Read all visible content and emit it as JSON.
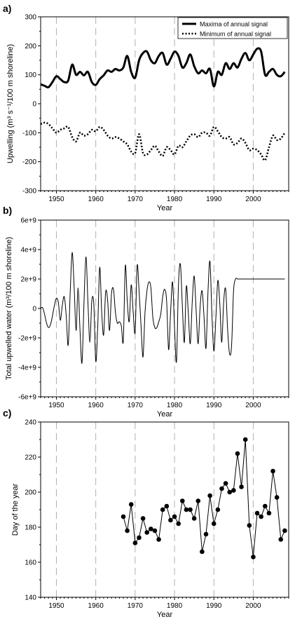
{
  "chart_data": [
    {
      "panel_label": "a)",
      "type": "line",
      "xlabel": "Year",
      "ylabel": "Upwelling (m³ s⁻¹/100 m shoreline)",
      "xlim": [
        1946,
        2009
      ],
      "ylim": [
        -300,
        300
      ],
      "yticks": [
        -300,
        -200,
        -100,
        0,
        100,
        200,
        300
      ],
      "xticks": [
        1950,
        1960,
        1970,
        1980,
        1990,
        2000
      ],
      "vgrid_dashed_at": [
        1950,
        1960,
        1970,
        1980,
        1990,
        2000
      ],
      "legend": {
        "placement": "top-right"
      },
      "series": [
        {
          "name": "Maxima of annual signal",
          "style": "solid-thick",
          "x": [
            1946,
            1947,
            1948,
            1949,
            1950,
            1951,
            1952,
            1953,
            1954,
            1955,
            1956,
            1957,
            1958,
            1959,
            1960,
            1961,
            1962,
            1963,
            1964,
            1965,
            1966,
            1967,
            1968,
            1969,
            1970,
            1971,
            1972,
            1973,
            1974,
            1975,
            1976,
            1977,
            1978,
            1979,
            1980,
            1981,
            1982,
            1983,
            1984,
            1985,
            1986,
            1987,
            1988,
            1989,
            1990,
            1991,
            1992,
            1993,
            1994,
            1995,
            1996,
            1997,
            1998,
            1999,
            2000,
            2001,
            2002,
            2003,
            2004,
            2005,
            2006,
            2007,
            2008
          ],
          "y": [
            67,
            62,
            57,
            75,
            95,
            85,
            75,
            80,
            135,
            100,
            110,
            98,
            110,
            75,
            65,
            85,
            98,
            115,
            110,
            120,
            115,
            125,
            165,
            110,
            90,
            150,
            175,
            180,
            150,
            140,
            165,
            175,
            135,
            155,
            180,
            165,
            125,
            140,
            170,
            130,
            105,
            115,
            105,
            120,
            60,
            110,
            100,
            140,
            120,
            140,
            125,
            155,
            175,
            150,
            170,
            190,
            180,
            100,
            110,
            120,
            100,
            95,
            110
          ]
        },
        {
          "name": "Minimum of annual signal",
          "style": "dotted",
          "x": [
            1946,
            1947,
            1948,
            1949,
            1950,
            1951,
            1952,
            1953,
            1954,
            1955,
            1956,
            1957,
            1958,
            1959,
            1960,
            1961,
            1962,
            1963,
            1964,
            1965,
            1966,
            1967,
            1968,
            1969,
            1970,
            1971,
            1972,
            1973,
            1974,
            1975,
            1976,
            1977,
            1978,
            1979,
            1980,
            1981,
            1982,
            1983,
            1984,
            1985,
            1986,
            1987,
            1988,
            1989,
            1990,
            1991,
            1992,
            1993,
            1994,
            1995,
            1996,
            1997,
            1998,
            1999,
            2000,
            2001,
            2002,
            2003,
            2004,
            2005,
            2006,
            2007,
            2008
          ],
          "y": [
            -70,
            -65,
            -70,
            -85,
            -100,
            -90,
            -85,
            -80,
            -115,
            -130,
            -100,
            -110,
            -105,
            -90,
            -95,
            -80,
            -90,
            -110,
            -120,
            -115,
            -120,
            -130,
            -140,
            -165,
            -170,
            -105,
            -170,
            -175,
            -160,
            -145,
            -165,
            -180,
            -150,
            -160,
            -175,
            -145,
            -150,
            -130,
            -110,
            -105,
            -115,
            -100,
            -100,
            -110,
            -80,
            -95,
            -115,
            -120,
            -115,
            -140,
            -135,
            -120,
            -135,
            -160,
            -155,
            -160,
            -175,
            -195,
            -150,
            -110,
            -125,
            -120,
            -100
          ]
        }
      ]
    },
    {
      "panel_label": "b)",
      "type": "line",
      "xlabel": "Year",
      "ylabel": "Total upwelled water (m³/100 m shoreline)",
      "xlim": [
        1946,
        2009
      ],
      "ylim": [
        -6000000000.0,
        6000000000.0
      ],
      "yticks": [
        -6000000000.0,
        -4000000000.0,
        -2000000000.0,
        0,
        2000000000.0,
        4000000000.0,
        6000000000.0
      ],
      "yticklabels": [
        "-6e+9",
        "-4e+9",
        "-2e+9",
        "0",
        "2e+9",
        "4e+9",
        "6e+9"
      ],
      "xticks": [
        1950,
        1960,
        1970,
        1980,
        1990,
        2000
      ],
      "vgrid_dashed_at": [
        1950,
        1960,
        1970,
        1980,
        1990,
        2000
      ],
      "series": [
        {
          "name": "",
          "style": "solid-thin",
          "x": [
            1946,
            1946.5,
            1947,
            1947.5,
            1948,
            1948.5,
            1949,
            1949.5,
            1950,
            1950.5,
            1951,
            1951.5,
            1952,
            1952.5,
            1953,
            1953.5,
            1954,
            1954.5,
            1955,
            1955.5,
            1956,
            1956.5,
            1957,
            1957.5,
            1958,
            1958.5,
            1959,
            1959.5,
            1960,
            1960.5,
            1961,
            1961.5,
            1962,
            1962.5,
            1963,
            1963.5,
            1964,
            1964.5,
            1965,
            1965.5,
            1966,
            1966.5,
            1967,
            1967.5,
            1968,
            1968.5,
            1969,
            1969.5,
            1970,
            1970.5,
            1971,
            1971.5,
            1972,
            1972.5,
            1973,
            1973.5,
            1974,
            1974.5,
            1975,
            1975.5,
            1976,
            1976.5,
            1977,
            1977.5,
            1978,
            1978.5,
            1979,
            1979.5,
            1980,
            1980.5,
            1981,
            1981.5,
            1982,
            1982.5,
            1983,
            1983.5,
            1984,
            1984.5,
            1985,
            1985.5,
            1986,
            1986.5,
            1987,
            1987.5,
            1988,
            1988.5,
            1989,
            1989.5,
            1990,
            1990.5,
            1991,
            1991.5,
            1992,
            1992.5,
            1993,
            1993.5,
            1994,
            1994.5,
            1995,
            1995.5,
            1996,
            1996.5,
            1997,
            1997.5,
            1998,
            1998.5,
            1999,
            1999.5,
            2000,
            2000.5,
            2001,
            2001.5,
            2002,
            2002.5,
            2003,
            2003.5,
            2004,
            2004.5,
            2005,
            2005.5,
            2006,
            2006.5,
            2007,
            2007.5,
            2008
          ],
          "y": [
            0,
            50000000.0,
            -400000000.0,
            -1000000000.0,
            -1300000000.0,
            -1100000000.0,
            -500000000.0,
            200000000.0,
            700000000.0,
            400000000.0,
            -800000000.0,
            200000000.0,
            800000000.0,
            -500000000.0,
            -2500000000.0,
            1000000000.0,
            3800000000.0,
            1500000000.0,
            -1500000000.0,
            1400000000.0,
            -1500000000.0,
            -3700000000.0,
            300000000.0,
            3500000000.0,
            500000000.0,
            -2300000000.0,
            500000000.0,
            300000000.0,
            -3600000000.0,
            -1200000000.0,
            2800000000.0,
            -200000000.0,
            -1800000000.0,
            1100000000.0,
            600000000.0,
            -1500000000.0,
            1000000000.0,
            1300000000.0,
            -300000000.0,
            -1000000000.0,
            -900000000.0,
            -1200000000.0,
            -2200000000.0,
            2900000000.0,
            500000000.0,
            -900000000.0,
            1600000000.0,
            -200000000.0,
            -1600000000.0,
            2900000000.0,
            1200000000.0,
            -1200000000.0,
            -3300000000.0,
            -300000000.0,
            1200000000.0,
            1800000000.0,
            1400000000.0,
            -600000000.0,
            -1300000000.0,
            -1300000000.0,
            -900000000.0,
            -400000000.0,
            800000000.0,
            1300000000.0,
            500000000.0,
            -2800000000.0,
            -300000000.0,
            1800000000.0,
            -1200000000.0,
            -3600000000.0,
            1600000000.0,
            3000000000.0,
            100000000.0,
            -2300000000.0,
            1500000000.0,
            -300000000.0,
            -2400000000.0,
            400000000.0,
            2200000000.0,
            -200000000.0,
            -2400000000.0,
            100000000.0,
            1200000000.0,
            -600000000.0,
            -2700000000.0,
            1100000000.0,
            3200000000.0,
            -400000000.0,
            -2900000000.0,
            -700000000.0,
            1900000000.0,
            300000000.0,
            -2300000000.0,
            500000000.0,
            1300000000.0,
            -1500000000.0,
            -3100000000.0,
            -2500000000.0,
            1200000000.0,
            2000000000.0,
            2000000000.0,
            2000000000.0,
            2000000000.0,
            2000000000.0,
            2000000000.0,
            2000000000.0,
            2000000000.0,
            2000000000.0,
            2000000000.0,
            2000000000.0,
            2000000000.0,
            2000000000.0,
            2000000000.0,
            2000000000.0,
            2000000000.0,
            2000000000.0,
            2000000000.0,
            2000000000.0,
            2000000000.0,
            2000000000.0,
            2000000000.0,
            2000000000.0,
            2000000000.0,
            2000000000.0,
            2000000000.0
          ]
        }
      ]
    },
    {
      "panel_label": "c)",
      "type": "line",
      "markers": true,
      "xlabel": "Year",
      "ylabel": "Day of the year",
      "xlim": [
        1946,
        2009
      ],
      "ylim": [
        140,
        240
      ],
      "yticks": [
        140,
        160,
        180,
        200,
        220,
        240
      ],
      "xticks": [
        1950,
        1960,
        1970,
        1980,
        1990,
        2000
      ],
      "vgrid_dashed_at": [
        1950,
        1960,
        1970,
        1980,
        1990,
        2000
      ],
      "series": [
        {
          "name": "",
          "style": "solid-thin-with-dots",
          "x": [
            1967,
            1968,
            1969,
            1970,
            1971,
            1972,
            1973,
            1974,
            1975,
            1976,
            1977,
            1978,
            1979,
            1980,
            1981,
            1982,
            1983,
            1984,
            1985,
            1986,
            1987,
            1988,
            1989,
            1990,
            1991,
            1992,
            1993,
            1994,
            1995,
            1996,
            1997,
            1998,
            1999,
            2000,
            2001,
            2002,
            2003,
            2004,
            2005,
            2006,
            2007,
            2008
          ],
          "y": [
            186,
            178,
            193,
            171,
            174,
            185,
            177,
            179,
            178,
            173,
            190,
            192,
            184,
            186,
            182,
            195,
            190,
            190,
            185,
            195,
            166,
            176,
            198,
            182,
            190,
            202,
            205,
            200,
            201,
            222,
            203,
            230,
            181,
            163,
            188,
            186,
            192,
            188,
            212,
            197,
            173,
            178
          ]
        }
      ]
    }
  ]
}
